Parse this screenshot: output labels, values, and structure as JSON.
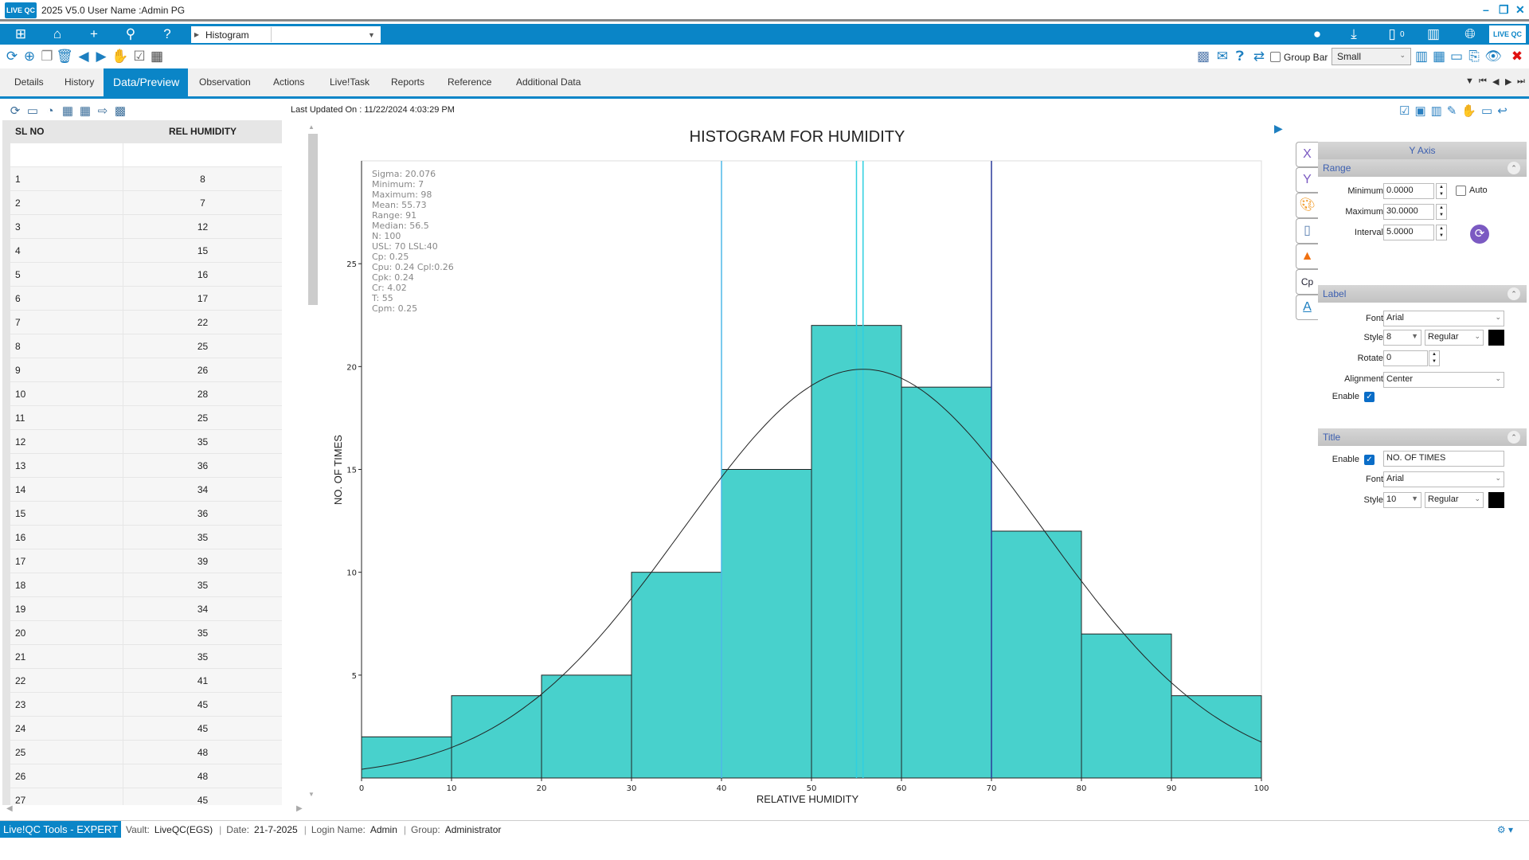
{
  "titlebar": {
    "title": "2025 V5.0  User Name :Admin PG",
    "logo": "LIVE QC",
    "minimize": "–",
    "restore": "❐",
    "close": "✕"
  },
  "breadcrumb": {
    "label": "Histogram"
  },
  "toolbar_right": {
    "group_bar_label": "Group Bar",
    "size_value": "Small",
    "badge_count": "0"
  },
  "tabs": [
    "Details",
    "History",
    "Data/Preview",
    "Observation",
    "Actions",
    "Live!Task",
    "Reports",
    "Reference",
    "Additional Data"
  ],
  "active_tab": "Data/Preview",
  "last_updated": "Last Updated On : 11/22/2024 4:03:29 PM",
  "grid": {
    "headers": [
      "SL NO",
      "REL HUMIDITY"
    ],
    "rows": [
      [
        "1",
        "8"
      ],
      [
        "2",
        "7"
      ],
      [
        "3",
        "12"
      ],
      [
        "4",
        "15"
      ],
      [
        "5",
        "16"
      ],
      [
        "6",
        "17"
      ],
      [
        "7",
        "22"
      ],
      [
        "8",
        "25"
      ],
      [
        "9",
        "26"
      ],
      [
        "10",
        "28"
      ],
      [
        "11",
        "25"
      ],
      [
        "12",
        "35"
      ],
      [
        "13",
        "36"
      ],
      [
        "14",
        "34"
      ],
      [
        "15",
        "36"
      ],
      [
        "16",
        "35"
      ],
      [
        "17",
        "39"
      ],
      [
        "18",
        "35"
      ],
      [
        "19",
        "34"
      ],
      [
        "20",
        "35"
      ],
      [
        "21",
        "35"
      ],
      [
        "22",
        "41"
      ],
      [
        "23",
        "45"
      ],
      [
        "24",
        "45"
      ],
      [
        "25",
        "48"
      ],
      [
        "26",
        "48"
      ],
      [
        "27",
        "45"
      ]
    ]
  },
  "chart_data": {
    "type": "bar",
    "title": "HISTOGRAM FOR HUMIDITY",
    "xlabel": "RELATIVE HUMIDITY",
    "ylabel": "NO. OF TIMES",
    "bins": [
      [
        0,
        10
      ],
      [
        10,
        20
      ],
      [
        20,
        30
      ],
      [
        30,
        40
      ],
      [
        40,
        50
      ],
      [
        50,
        60
      ],
      [
        60,
        70
      ],
      [
        70,
        80
      ],
      [
        80,
        90
      ],
      [
        90,
        100
      ]
    ],
    "values": [
      2,
      4,
      5,
      10,
      15,
      22,
      19,
      12,
      7,
      4
    ],
    "xlim": [
      0,
      100
    ],
    "ylim": [
      0,
      30
    ],
    "xticks": [
      "0",
      "10",
      "20",
      "30",
      "40",
      "50",
      "60",
      "70",
      "80",
      "90",
      "100"
    ],
    "yticks": [
      "5",
      "10",
      "15",
      "20",
      "25"
    ],
    "normal_curve": {
      "mean": 55.73,
      "sigma": 20.076,
      "n": 100,
      "bin_width": 10
    },
    "ref_lines": [
      {
        "name": "LSL",
        "x": 40,
        "color": "#4fb8e8"
      },
      {
        "name": "T",
        "x": 55,
        "color": "#2fd0e0"
      },
      {
        "name": "Mean",
        "x": 55.73,
        "color": "#2fd0e0"
      },
      {
        "name": "USL",
        "x": 70,
        "color": "#2a3a9a"
      }
    ],
    "bar_color": "#48d1cc",
    "stats": [
      "Sigma: 20.076",
      "Minimum: 7",
      "Maximum: 98",
      "Mean: 55.73",
      "Range: 91",
      "Median: 56.5",
      "N: 100",
      "USL: 70  LSL:40",
      "Cp: 0.25",
      "Cpu: 0.24  Cpl:0.26",
      "Cpk: 0.24",
      "Cr: 4.02",
      "T: 55",
      "Cpm: 0.25"
    ]
  },
  "panel": {
    "header": "Y Axis",
    "side_tabs": [
      "X",
      "Y"
    ],
    "range": {
      "title": "Range",
      "min_label": "Minimum",
      "min": "0.0000",
      "max_label": "Maximum",
      "max": "30.0000",
      "interval_label": "Interval",
      "interval": "5.0000",
      "auto_label": "Auto"
    },
    "label": {
      "title": "Label",
      "font_label": "Font",
      "font": "Arial",
      "style_label": "Style",
      "size": "8",
      "style": "Regular",
      "rotate_label": "Rotate",
      "rotate": "0",
      "align_label": "Alignment",
      "align": "Center",
      "enable_label": "Enable"
    },
    "titlesec": {
      "title": "Title",
      "enable_label": "Enable",
      "text": "NO. OF TIMES",
      "font_label": "Font",
      "font": "Arial",
      "style_label": "Style",
      "size": "10",
      "style": "Regular"
    }
  },
  "status": {
    "brand": "Live!QC Tools - EXPERT",
    "vault_k": "Vault:",
    "vault": "LiveQC(EGS)",
    "date_k": "Date:",
    "date": "21-7-2025",
    "login_k": "Login Name:",
    "login": "Admin",
    "group_k": "Group:",
    "group": "Administrator"
  }
}
